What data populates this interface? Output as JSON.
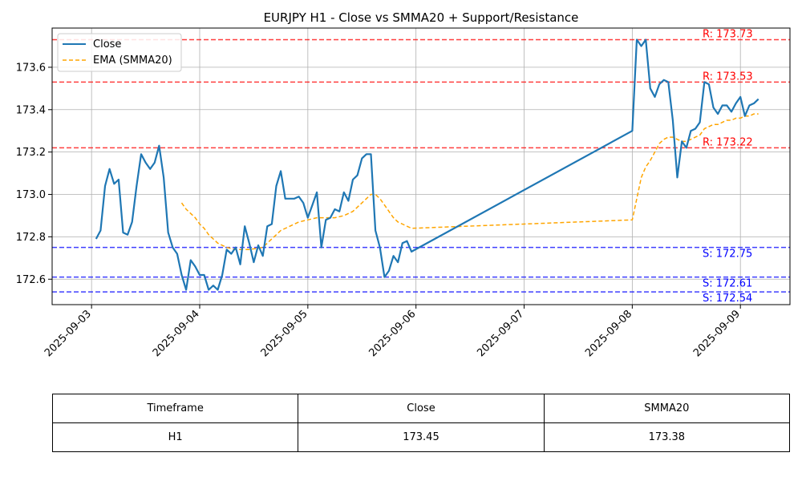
{
  "chart_data": {
    "type": "line",
    "title": "EURJPY H1 - Close vs SMMA20 + Support/Resistance",
    "x_tick_labels": [
      "2025-09-03",
      "2025-09-04",
      "2025-09-05",
      "2025-09-06",
      "2025-09-07",
      "2025-09-08",
      "2025-09-09"
    ],
    "xlim": [
      "2025-09-02 15:15",
      "2025-09-09 11:00"
    ],
    "ylim": [
      172.48,
      173.785
    ],
    "y_ticks": [
      172.6,
      172.8,
      173.0,
      173.2,
      173.4,
      173.6
    ],
    "y_tick_labels": [
      "172.6",
      "172.8",
      "173.0",
      "173.2",
      "173.4",
      "173.6"
    ],
    "grid": true,
    "legend": {
      "placement": "top-left"
    },
    "series": [
      {
        "name": "Close",
        "color": "#1f77b4",
        "style": "solid",
        "points": [
          [
            "2025-09-03 01:00",
            172.79
          ],
          [
            "2025-09-03 02:00",
            172.83
          ],
          [
            "2025-09-03 03:00",
            173.04
          ],
          [
            "2025-09-03 04:00",
            173.12
          ],
          [
            "2025-09-03 05:00",
            173.05
          ],
          [
            "2025-09-03 06:00",
            173.07
          ],
          [
            "2025-09-03 07:00",
            172.82
          ],
          [
            "2025-09-03 08:00",
            172.81
          ],
          [
            "2025-09-03 09:00",
            172.87
          ],
          [
            "2025-09-03 10:00",
            173.04
          ],
          [
            "2025-09-03 11:00",
            173.19
          ],
          [
            "2025-09-03 12:00",
            173.15
          ],
          [
            "2025-09-03 13:00",
            173.12
          ],
          [
            "2025-09-03 14:00",
            173.15
          ],
          [
            "2025-09-03 15:00",
            173.23
          ],
          [
            "2025-09-03 16:00",
            173.08
          ],
          [
            "2025-09-03 17:00",
            172.82
          ],
          [
            "2025-09-03 18:00",
            172.75
          ],
          [
            "2025-09-03 19:00",
            172.72
          ],
          [
            "2025-09-03 20:00",
            172.62
          ],
          [
            "2025-09-03 21:00",
            172.55
          ],
          [
            "2025-09-03 22:00",
            172.69
          ],
          [
            "2025-09-03 23:00",
            172.66
          ],
          [
            "2025-09-04 00:00",
            172.62
          ],
          [
            "2025-09-04 01:00",
            172.62
          ],
          [
            "2025-09-04 02:00",
            172.55
          ],
          [
            "2025-09-04 03:00",
            172.57
          ],
          [
            "2025-09-04 04:00",
            172.55
          ],
          [
            "2025-09-04 05:00",
            172.62
          ],
          [
            "2025-09-04 06:00",
            172.74
          ],
          [
            "2025-09-04 07:00",
            172.72
          ],
          [
            "2025-09-04 08:00",
            172.75
          ],
          [
            "2025-09-04 09:00",
            172.67
          ],
          [
            "2025-09-04 10:00",
            172.85
          ],
          [
            "2025-09-04 11:00",
            172.77
          ],
          [
            "2025-09-04 12:00",
            172.68
          ],
          [
            "2025-09-04 13:00",
            172.76
          ],
          [
            "2025-09-04 14:00",
            172.71
          ],
          [
            "2025-09-04 15:00",
            172.85
          ],
          [
            "2025-09-04 16:00",
            172.86
          ],
          [
            "2025-09-04 17:00",
            173.04
          ],
          [
            "2025-09-04 18:00",
            173.11
          ],
          [
            "2025-09-04 19:00",
            172.98
          ],
          [
            "2025-09-04 20:00",
            172.98
          ],
          [
            "2025-09-04 21:00",
            172.98
          ],
          [
            "2025-09-04 22:00",
            172.99
          ],
          [
            "2025-09-04 23:00",
            172.96
          ],
          [
            "2025-09-05 00:00",
            172.89
          ],
          [
            "2025-09-05 01:00",
            172.95
          ],
          [
            "2025-09-05 02:00",
            173.01
          ],
          [
            "2025-09-05 03:00",
            172.75
          ],
          [
            "2025-09-05 04:00",
            172.88
          ],
          [
            "2025-09-05 05:00",
            172.89
          ],
          [
            "2025-09-05 06:00",
            172.93
          ],
          [
            "2025-09-05 07:00",
            172.92
          ],
          [
            "2025-09-05 08:00",
            173.01
          ],
          [
            "2025-09-05 09:00",
            172.97
          ],
          [
            "2025-09-05 10:00",
            173.07
          ],
          [
            "2025-09-05 11:00",
            173.09
          ],
          [
            "2025-09-05 12:00",
            173.17
          ],
          [
            "2025-09-05 13:00",
            173.19
          ],
          [
            "2025-09-05 14:00",
            173.19
          ],
          [
            "2025-09-05 15:00",
            172.83
          ],
          [
            "2025-09-05 16:00",
            172.75
          ],
          [
            "2025-09-05 17:00",
            172.61
          ],
          [
            "2025-09-05 18:00",
            172.64
          ],
          [
            "2025-09-05 19:00",
            172.71
          ],
          [
            "2025-09-05 20:00",
            172.68
          ],
          [
            "2025-09-05 21:00",
            172.77
          ],
          [
            "2025-09-05 22:00",
            172.78
          ],
          [
            "2025-09-05 23:00",
            172.73
          ],
          [
            "2025-09-08 00:00",
            173.3
          ],
          [
            "2025-09-08 01:00",
            173.73
          ],
          [
            "2025-09-08 02:00",
            173.7
          ],
          [
            "2025-09-08 03:00",
            173.73
          ],
          [
            "2025-09-08 04:00",
            173.5
          ],
          [
            "2025-09-08 05:00",
            173.46
          ],
          [
            "2025-09-08 06:00",
            173.52
          ],
          [
            "2025-09-08 07:00",
            173.54
          ],
          [
            "2025-09-08 08:00",
            173.53
          ],
          [
            "2025-09-08 09:00",
            173.35
          ],
          [
            "2025-09-08 10:00",
            173.08
          ],
          [
            "2025-09-08 11:00",
            173.25
          ],
          [
            "2025-09-08 12:00",
            173.22
          ],
          [
            "2025-09-08 13:00",
            173.3
          ],
          [
            "2025-09-08 14:00",
            173.31
          ],
          [
            "2025-09-08 15:00",
            173.34
          ],
          [
            "2025-09-08 16:00",
            173.53
          ],
          [
            "2025-09-08 17:00",
            173.52
          ],
          [
            "2025-09-08 18:00",
            173.41
          ],
          [
            "2025-09-08 19:00",
            173.38
          ],
          [
            "2025-09-08 20:00",
            173.42
          ],
          [
            "2025-09-08 21:00",
            173.42
          ],
          [
            "2025-09-08 22:00",
            173.39
          ],
          [
            "2025-09-08 23:00",
            173.43
          ],
          [
            "2025-09-09 00:00",
            173.46
          ],
          [
            "2025-09-09 01:00",
            173.37
          ],
          [
            "2025-09-09 02:00",
            173.42
          ],
          [
            "2025-09-09 03:00",
            173.43
          ],
          [
            "2025-09-09 04:00",
            173.45
          ]
        ]
      },
      {
        "name": "EMA (SMMA20)",
        "color": "#ffa500",
        "style": "dashed",
        "points": [
          [
            "2025-09-03 20:00",
            172.96
          ],
          [
            "2025-09-03 21:00",
            172.93
          ],
          [
            "2025-09-03 22:00",
            172.91
          ],
          [
            "2025-09-03 23:00",
            172.89
          ],
          [
            "2025-09-04 00:00",
            172.86
          ],
          [
            "2025-09-04 01:00",
            172.84
          ],
          [
            "2025-09-04 02:00",
            172.81
          ],
          [
            "2025-09-04 03:00",
            172.79
          ],
          [
            "2025-09-04 04:00",
            172.77
          ],
          [
            "2025-09-04 05:00",
            172.76
          ],
          [
            "2025-09-04 06:00",
            172.75
          ],
          [
            "2025-09-04 08:00",
            172.74
          ],
          [
            "2025-09-04 11:00",
            172.74
          ],
          [
            "2025-09-04 14:00",
            172.75
          ],
          [
            "2025-09-04 15:00",
            172.77
          ],
          [
            "2025-09-04 16:00",
            172.79
          ],
          [
            "2025-09-04 17:00",
            172.81
          ],
          [
            "2025-09-04 18:00",
            172.83
          ],
          [
            "2025-09-04 20:00",
            172.85
          ],
          [
            "2025-09-04 22:00",
            172.87
          ],
          [
            "2025-09-05 00:00",
            172.88
          ],
          [
            "2025-09-05 02:00",
            172.89
          ],
          [
            "2025-09-05 04:00",
            172.89
          ],
          [
            "2025-09-05 06:00",
            172.89
          ],
          [
            "2025-09-05 08:00",
            172.9
          ],
          [
            "2025-09-05 10:00",
            172.92
          ],
          [
            "2025-09-05 11:00",
            172.94
          ],
          [
            "2025-09-05 12:00",
            172.96
          ],
          [
            "2025-09-05 13:00",
            172.98
          ],
          [
            "2025-09-05 14:00",
            173.0
          ],
          [
            "2025-09-05 15:00",
            173.0
          ],
          [
            "2025-09-05 16:00",
            172.98
          ],
          [
            "2025-09-05 17:00",
            172.95
          ],
          [
            "2025-09-05 18:00",
            172.92
          ],
          [
            "2025-09-05 19:00",
            172.89
          ],
          [
            "2025-09-05 20:00",
            172.87
          ],
          [
            "2025-09-05 21:00",
            172.86
          ],
          [
            "2025-09-05 22:00",
            172.85
          ],
          [
            "2025-09-05 23:00",
            172.84
          ],
          [
            "2025-09-08 00:00",
            172.88
          ],
          [
            "2025-09-08 01:00",
            172.98
          ],
          [
            "2025-09-08 02:00",
            173.08
          ],
          [
            "2025-09-08 03:00",
            173.13
          ],
          [
            "2025-09-08 04:00",
            173.16
          ],
          [
            "2025-09-08 05:00",
            173.2
          ],
          [
            "2025-09-08 06:00",
            173.24
          ],
          [
            "2025-09-08 07:00",
            173.26
          ],
          [
            "2025-09-08 08:00",
            173.27
          ],
          [
            "2025-09-08 09:00",
            173.27
          ],
          [
            "2025-09-08 10:00",
            173.26
          ],
          [
            "2025-09-08 11:00",
            173.25
          ],
          [
            "2025-09-08 12:00",
            173.25
          ],
          [
            "2025-09-08 13:00",
            173.26
          ],
          [
            "2025-09-08 14:00",
            173.27
          ],
          [
            "2025-09-08 15:00",
            173.28
          ],
          [
            "2025-09-08 16:00",
            173.31
          ],
          [
            "2025-09-08 17:00",
            173.32
          ],
          [
            "2025-09-08 18:00",
            173.33
          ],
          [
            "2025-09-08 19:00",
            173.33
          ],
          [
            "2025-09-08 20:00",
            173.34
          ],
          [
            "2025-09-08 21:00",
            173.35
          ],
          [
            "2025-09-08 22:00",
            173.35
          ],
          [
            "2025-09-08 23:00",
            173.36
          ],
          [
            "2025-09-09 00:00",
            173.36
          ],
          [
            "2025-09-09 01:00",
            173.37
          ],
          [
            "2025-09-09 02:00",
            173.37
          ],
          [
            "2025-09-09 03:00",
            173.38
          ],
          [
            "2025-09-09 04:00",
            173.38
          ]
        ]
      }
    ],
    "resistance_levels": [
      {
        "value": 173.73,
        "label": "R: 173.73"
      },
      {
        "value": 173.53,
        "label": "R: 173.53"
      },
      {
        "value": 173.22,
        "label": "R: 173.22"
      }
    ],
    "support_levels": [
      {
        "value": 172.75,
        "label": "S: 172.75"
      },
      {
        "value": 172.61,
        "label": "S: 172.61"
      },
      {
        "value": 172.54,
        "label": "S: 172.54"
      }
    ],
    "colors": {
      "resistance": "#ff0000",
      "support": "#0000ff"
    }
  },
  "table": {
    "headers": [
      "Timeframe",
      "Close",
      "SMMA20"
    ],
    "row": [
      "H1",
      "173.45",
      "173.38"
    ]
  }
}
